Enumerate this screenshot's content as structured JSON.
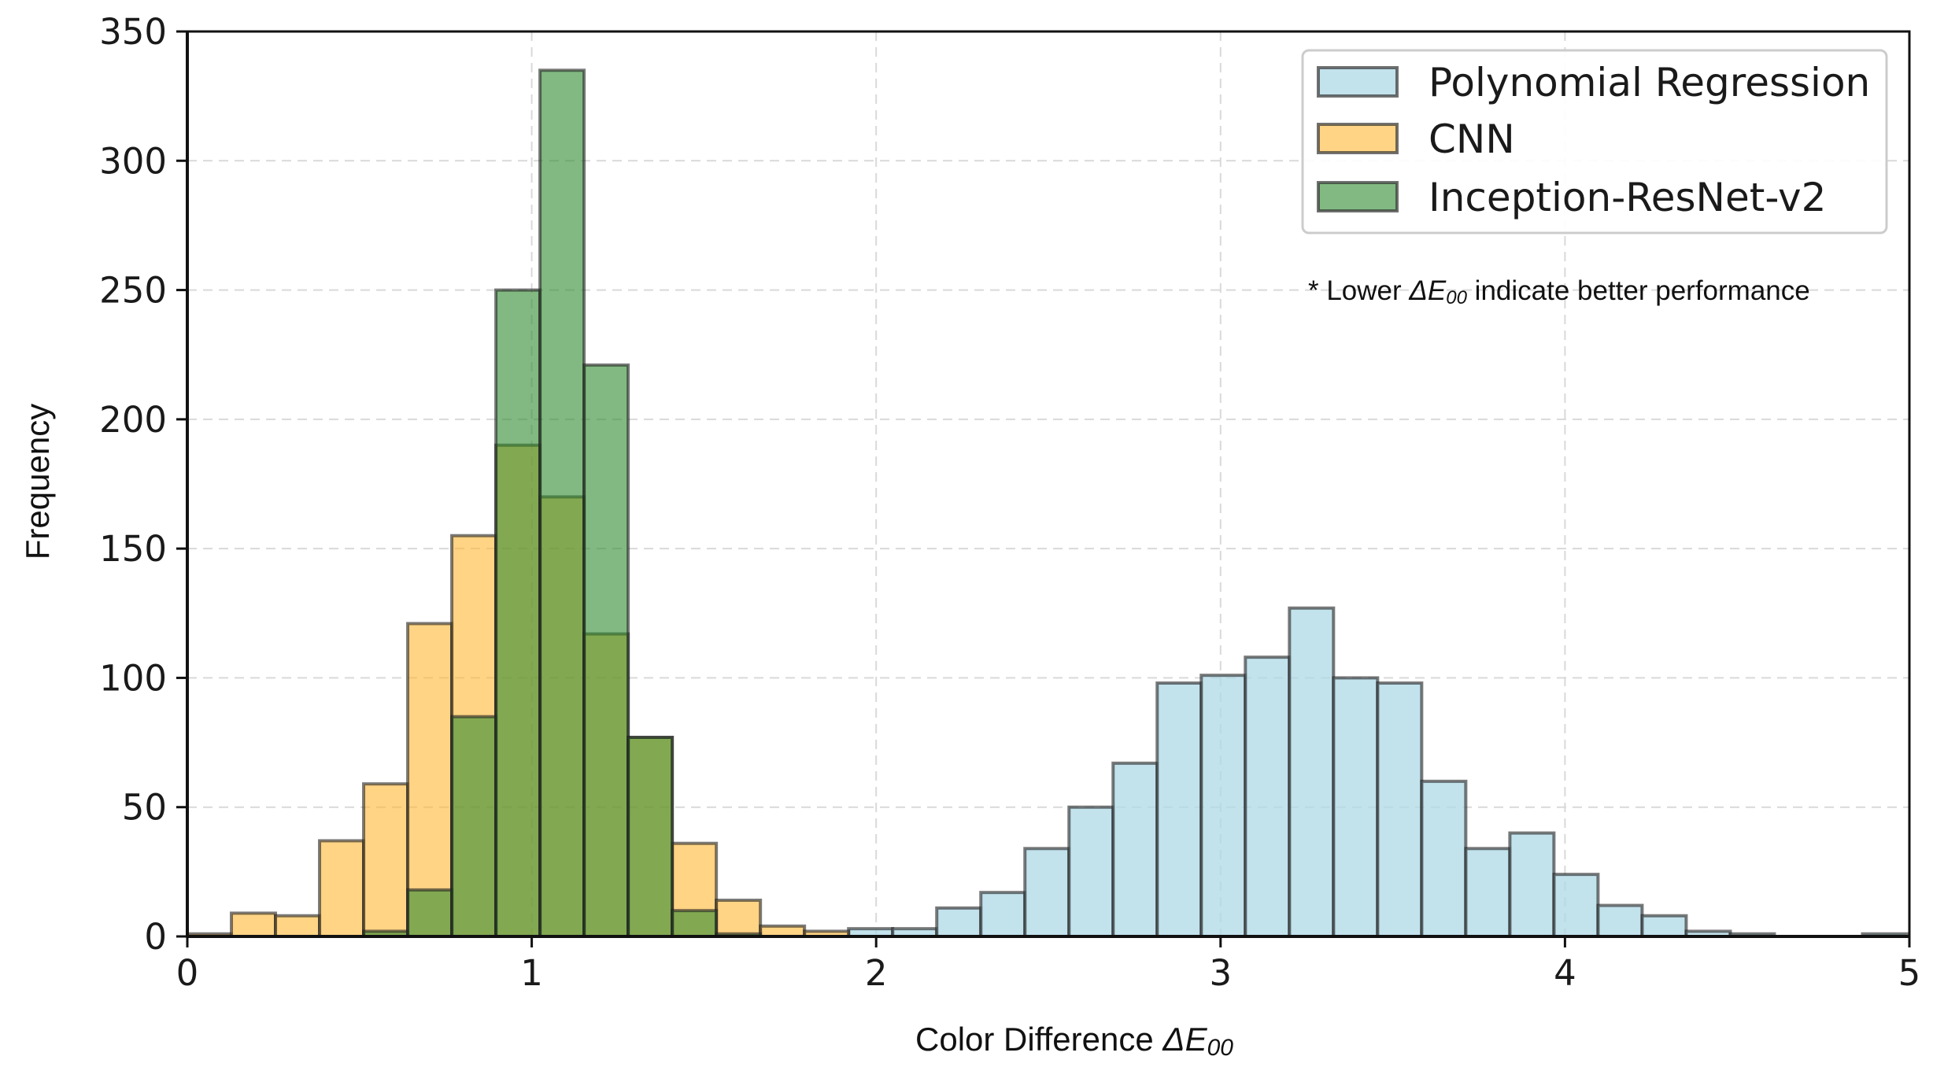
{
  "chart_data": {
    "type": "histogram",
    "title": "",
    "xlabel_prefix": "Color Difference ",
    "xlabel_symbol": "ΔE",
    "xlabel_subscript": "00",
    "ylabel": "Frequency",
    "xlim": [
      0,
      5
    ],
    "ylim": [
      0,
      350
    ],
    "xticks": [
      0,
      1,
      2,
      3,
      4,
      5
    ],
    "yticks": [
      0,
      50,
      100,
      150,
      200,
      250,
      300,
      350
    ],
    "grid": true,
    "legend_position": "top-right",
    "bin_width": 0.128,
    "note": {
      "prefix": "* Lower ",
      "symbol": "ΔE",
      "subscript": "00",
      "suffix": " indicate better performance"
    },
    "series": [
      {
        "name": "Polynomial Regression",
        "color": "#add8e6",
        "bins": [
          {
            "x": 1.92,
            "y": 3
          },
          {
            "x": 2.048,
            "y": 3
          },
          {
            "x": 2.176,
            "y": 11
          },
          {
            "x": 2.304,
            "y": 17
          },
          {
            "x": 2.432,
            "y": 34
          },
          {
            "x": 2.56,
            "y": 50
          },
          {
            "x": 2.688,
            "y": 67
          },
          {
            "x": 2.816,
            "y": 98
          },
          {
            "x": 2.944,
            "y": 101
          },
          {
            "x": 3.072,
            "y": 108
          },
          {
            "x": 3.2,
            "y": 127
          },
          {
            "x": 3.328,
            "y": 100
          },
          {
            "x": 3.456,
            "y": 98
          },
          {
            "x": 3.584,
            "y": 60
          },
          {
            "x": 3.712,
            "y": 34
          },
          {
            "x": 3.84,
            "y": 40
          },
          {
            "x": 3.968,
            "y": 24
          },
          {
            "x": 4.096,
            "y": 12
          },
          {
            "x": 4.224,
            "y": 8
          },
          {
            "x": 4.352,
            "y": 2
          },
          {
            "x": 4.48,
            "y": 1
          },
          {
            "x": 4.608,
            "y": 0
          },
          {
            "x": 4.736,
            "y": 0
          },
          {
            "x": 4.864,
            "y": 1
          }
        ]
      },
      {
        "name": "CNN",
        "color": "#ffb732",
        "bins": [
          {
            "x": 0.0,
            "y": 1
          },
          {
            "x": 0.128,
            "y": 9
          },
          {
            "x": 0.256,
            "y": 8
          },
          {
            "x": 0.384,
            "y": 37
          },
          {
            "x": 0.512,
            "y": 59
          },
          {
            "x": 0.64,
            "y": 121
          },
          {
            "x": 0.768,
            "y": 155
          },
          {
            "x": 0.896,
            "y": 190
          },
          {
            "x": 1.024,
            "y": 170
          },
          {
            "x": 1.152,
            "y": 117
          },
          {
            "x": 1.28,
            "y": 77
          },
          {
            "x": 1.408,
            "y": 36
          },
          {
            "x": 1.536,
            "y": 14
          },
          {
            "x": 1.664,
            "y": 4
          },
          {
            "x": 1.792,
            "y": 2
          }
        ]
      },
      {
        "name": "Inception-ResNet-v2",
        "color": "#2e8b2e",
        "bins": [
          {
            "x": 0.512,
            "y": 2
          },
          {
            "x": 0.64,
            "y": 18
          },
          {
            "x": 0.768,
            "y": 85
          },
          {
            "x": 0.896,
            "y": 250
          },
          {
            "x": 1.024,
            "y": 335
          },
          {
            "x": 1.152,
            "y": 221
          },
          {
            "x": 1.28,
            "y": 77
          },
          {
            "x": 1.408,
            "y": 10
          },
          {
            "x": 1.536,
            "y": 1
          }
        ]
      }
    ]
  }
}
